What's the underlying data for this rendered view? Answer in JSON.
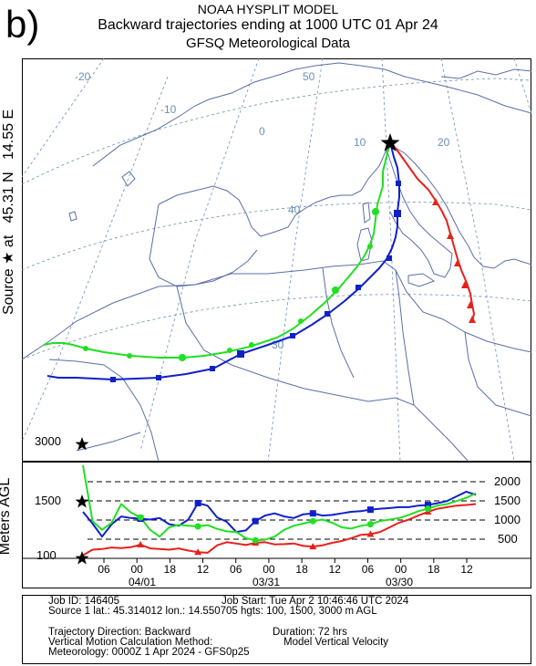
{
  "header": {
    "panel_letter": "b)",
    "title": "NOAA HYSPLIT MODEL",
    "subtitle": "Backward trajectories ending at 1000 UTC 01 Apr 24",
    "meteorology": "GFSQ Meteorological Data"
  },
  "side_labels": {
    "source": "Source ★ at",
    "lat": "45.31 N",
    "lon": "14.55 E",
    "meters": "Meters AGL"
  },
  "map": {
    "longitude_labels": [
      "-20",
      "-10",
      "0",
      "10",
      "20"
    ],
    "latitude_labels": [
      "50",
      "40",
      "30"
    ]
  },
  "info_box": {
    "job_id": "Job ID: 146405",
    "job_start": "Job Start: Tue Apr  2 10:46:46 UTC 2024",
    "source": "Source 1 lat.: 45.314012  lon.: 14.550705  hgts: 100, 1500, 3000 m AGL",
    "direction": "Trajectory Direction: Backward",
    "duration": "Duration: 72 hrs",
    "vertical_label": "Vertical Motion Calculation Method:",
    "vertical_value": "Model Vertical Velocity",
    "meteorology": "Meteorology: 0000Z 1 Apr 2024 - GFS0p25"
  },
  "chart_data": {
    "type": "line",
    "x_tick_labels": [
      "06",
      "00",
      "18",
      "12",
      "06",
      "00",
      "18",
      "12",
      "06",
      "00",
      "18",
      "12"
    ],
    "date_labels": [
      "04/01",
      "03/31",
      "03/30"
    ],
    "y_left_labels": [
      "3000",
      "1500",
      "100"
    ],
    "y_right_labels": [
      "2000",
      "1500",
      "1000",
      "500"
    ],
    "ylim": [
      0,
      3000
    ],
    "colors": {
      "red": "#e8201c",
      "blue": "#1020c8",
      "green": "#20e020"
    },
    "series": [
      {
        "start_height": 100,
        "color": "#e8201c",
        "heights": [
          100,
          280,
          300,
          350,
          330,
          360,
          440,
          320,
          300,
          280,
          320,
          250,
          200,
          180,
          420,
          520,
          480,
          430,
          500,
          520,
          450,
          460,
          480,
          400,
          380,
          420,
          500,
          560,
          650,
          760,
          780,
          850,
          1000,
          1150,
          1250,
          1380,
          1500,
          1600,
          1650,
          1700,
          1720,
          1750
        ]
      },
      {
        "start_height": 1500,
        "color": "#1020c8",
        "heights": [
          1500,
          1120,
          700,
          1100,
          1350,
          1300,
          1280,
          1250,
          1300,
          1100,
          1050,
          1250,
          1780,
          1700,
          1320,
          1180,
          850,
          900,
          1200,
          1380,
          1450,
          1350,
          1300,
          1420,
          1450,
          1380,
          1400,
          1450,
          1500,
          1520,
          1570,
          1600,
          1620,
          1650,
          1650,
          1700,
          1720,
          1780,
          1850,
          2000,
          2150,
          2050
        ]
      },
      {
        "start_height": 3000,
        "color": "#20e020",
        "heights": [
          3000,
          1200,
          920,
          1150,
          1750,
          1480,
          1320,
          920,
          700,
          1000,
          1080,
          1050,
          1030,
          1070,
          950,
          870,
          850,
          650,
          580,
          600,
          700,
          920,
          1050,
          1120,
          1200,
          1250,
          1150,
          1000,
          960,
          1050,
          1100,
          1200,
          1250,
          1300,
          1400,
          1520,
          1600,
          1700,
          1750,
          1850,
          1950,
          2100
        ]
      }
    ]
  }
}
